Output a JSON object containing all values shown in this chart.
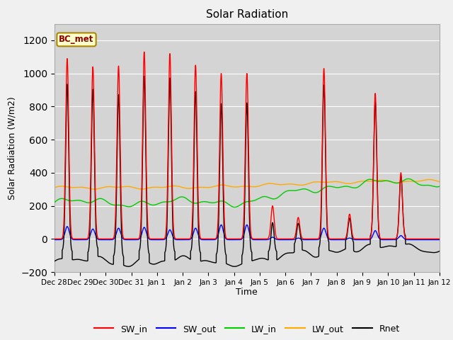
{
  "title": "Solar Radiation",
  "xlabel": "Time",
  "ylabel": "Solar Radiation (W/m2)",
  "ylim": [
    -200,
    1300
  ],
  "yticks": [
    -200,
    0,
    200,
    400,
    600,
    800,
    1000,
    1200
  ],
  "n_days": 15,
  "colors": {
    "SW_in": "#ff0000",
    "SW_out": "#0000ff",
    "LW_in": "#00cc00",
    "LW_out": "#ffaa00",
    "Rnet": "#000000"
  },
  "bc_met_label": "BC_met",
  "fig_bg": "#f0f0f0",
  "ax_bg": "#d4d4d4",
  "linewidth": 1.0,
  "sw_peaks": [
    1090,
    1040,
    1045,
    1130,
    1120,
    1050,
    1000,
    1000,
    200,
    130,
    1030,
    150,
    880,
    400,
    0
  ],
  "sw_out_peaks": [
    80,
    65,
    70,
    75,
    60,
    70,
    90,
    90,
    15,
    10,
    70,
    10,
    55,
    25,
    0
  ],
  "xtick_labels": [
    "Dec 28",
    "Dec 29",
    "Dec 30",
    "Dec 31",
    "Jan 1",
    "Jan 2",
    "Jan 3",
    "Jan 4",
    "Jan 5",
    "Jan 6",
    "Jan 7",
    "Jan 8",
    "Jan 9",
    "Jan 10",
    "Jan 11",
    "Jan 12"
  ]
}
